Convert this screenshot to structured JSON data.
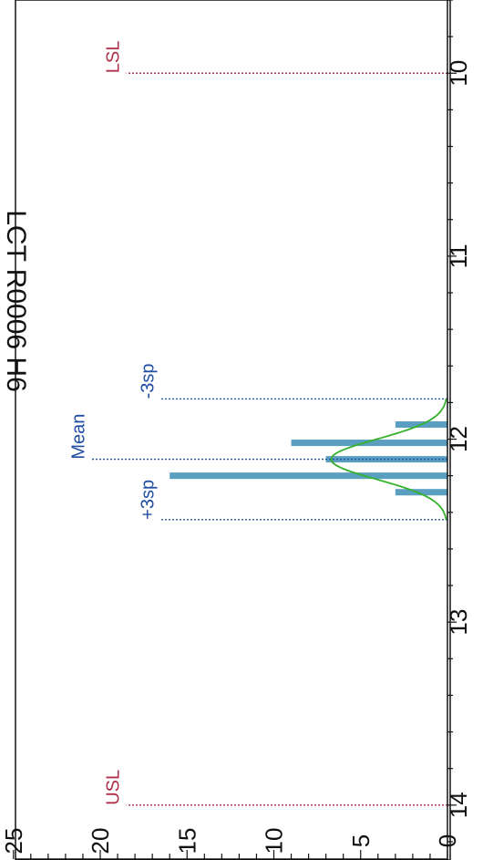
{
  "title": "LCT R0006 H6",
  "chart_data": {
    "type": "bar",
    "orientation": "rotated-90-clockwise",
    "title": "LCT R0006 H6",
    "xlim": [
      9.6,
      14.3
    ],
    "ylim": [
      0,
      25
    ],
    "x_ticks": [
      10,
      11,
      12,
      13,
      14
    ],
    "x_tick_labels": [
      "10",
      "11",
      "12",
      "13",
      "14"
    ],
    "y_ticks": [
      0,
      5,
      10,
      15,
      20,
      25
    ],
    "y_tick_labels": [
      "0",
      "5",
      "10",
      "15",
      "20",
      "25"
    ],
    "bars": [
      {
        "x": 11.92,
        "value": 3
      },
      {
        "x": 12.02,
        "value": 9
      },
      {
        "x": 12.11,
        "value": 7
      },
      {
        "x": 12.2,
        "value": 16
      },
      {
        "x": 12.29,
        "value": 3
      }
    ],
    "bar_width": 0.035,
    "normal_curve": {
      "mean": 12.11,
      "sd": 0.11,
      "peak": 6.7
    },
    "reference_lines": [
      {
        "label": "LSL",
        "x": 10,
        "height": 18.5,
        "color": "#b0304a"
      },
      {
        "label": "USL",
        "x": 14,
        "height": 18.5,
        "color": "#b0304a"
      },
      {
        "label": "-3sp",
        "x": 11.78,
        "height": 16.5,
        "color": "#1f4ea3"
      },
      {
        "label": "Mean",
        "x": 12.11,
        "height": 20.5,
        "color": "#1f4ea3"
      },
      {
        "label": "+3sp",
        "x": 12.44,
        "height": 16.5,
        "color": "#1f4ea3"
      }
    ],
    "colors": {
      "bar": "#5b9fc0",
      "curve": "#34b22c",
      "axis": "#111111"
    }
  }
}
